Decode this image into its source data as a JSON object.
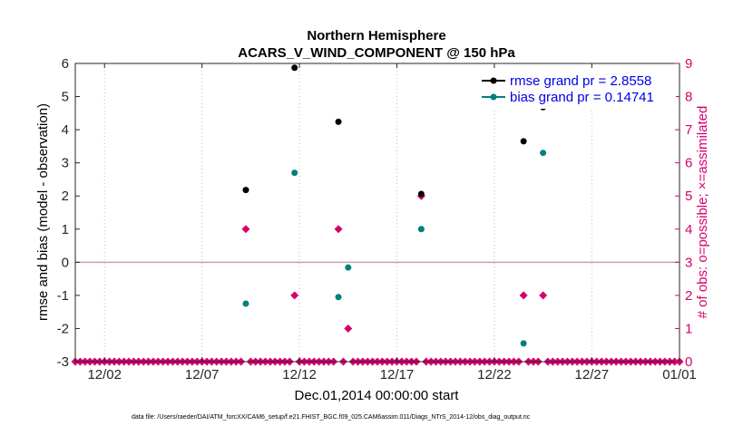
{
  "chart_data": {
    "type": "scatter",
    "title": "Northern Hemisphere",
    "subtitle": "ACARS_V_WIND_COMPONENT @ 150 hPa",
    "xlabel": "Dec.01,2014 00:00:00 start",
    "ylabel": "rmse and bias (model - observation)",
    "y2label": "# of obs: o=possible; ×=assimilated",
    "xlim": [
      0.5,
      31.5
    ],
    "ylim": [
      -3,
      6
    ],
    "y2lim": [
      0,
      9
    ],
    "xticks": [
      {
        "x": 2,
        "label": "12/02"
      },
      {
        "x": 7,
        "label": "12/07"
      },
      {
        "x": 12,
        "label": "12/12"
      },
      {
        "x": 17,
        "label": "12/17"
      },
      {
        "x": 22,
        "label": "12/22"
      },
      {
        "x": 27,
        "label": "12/27"
      },
      {
        "x": 32,
        "label": "01/01"
      }
    ],
    "yticks": [
      "-3",
      "-2",
      "-1",
      "0",
      "1",
      "2",
      "3",
      "4",
      "5",
      "6"
    ],
    "y2ticks": [
      "0",
      "1",
      "2",
      "3",
      "4",
      "5",
      "6",
      "7",
      "8",
      "9"
    ],
    "zero_line": 0,
    "series": [
      {
        "name": "rmse grand pr = 2.8558",
        "color": "#000000",
        "axis": "left",
        "points": [
          {
            "x": 9.25,
            "y": 2.18
          },
          {
            "x": 11.75,
            "y": 5.87
          },
          {
            "x": 14.0,
            "y": 4.24
          },
          {
            "x": 18.25,
            "y": 2.06
          },
          {
            "x": 23.5,
            "y": 3.65
          },
          {
            "x": 24.5,
            "y": 4.68
          }
        ]
      },
      {
        "name": "bias grand pr = 0.14741",
        "color": "#008080",
        "axis": "left",
        "points": [
          {
            "x": 9.25,
            "y": -1.25
          },
          {
            "x": 11.75,
            "y": 2.7
          },
          {
            "x": 14.0,
            "y": -1.05
          },
          {
            "x": 14.5,
            "y": -0.16
          },
          {
            "x": 18.25,
            "y": 1.0
          },
          {
            "x": 23.5,
            "y": -2.45
          },
          {
            "x": 24.5,
            "y": 3.3
          }
        ]
      },
      {
        "name": "# of obs possible",
        "color": "#d6006e",
        "axis": "right",
        "marker": "diamond",
        "points": [
          {
            "x": 9.25,
            "y": 4
          },
          {
            "x": 11.75,
            "y": 2
          },
          {
            "x": 14.0,
            "y": 4
          },
          {
            "x": 14.5,
            "y": 1
          },
          {
            "x": 18.25,
            "y": 5
          },
          {
            "x": 23.5,
            "y": 2
          },
          {
            "x": 24.5,
            "y": 2
          }
        ],
        "baseline_value": 0,
        "baseline_step_days": 0.25
      }
    ],
    "legend": [
      {
        "label": "rmse grand pr = 2.8558",
        "color": "#000000"
      },
      {
        "label": "bias grand pr = 0.14741",
        "color": "#008080"
      }
    ],
    "legend_position": "top-right",
    "footnote": "data file: /Users/raeder/DAI/ATM_forcXX/CAM6_setup/f.e21.FHIST_BGC.f09_025.CAM6assim.011/Diags_NTrS_2014-12/obs_diag_output.nc"
  }
}
